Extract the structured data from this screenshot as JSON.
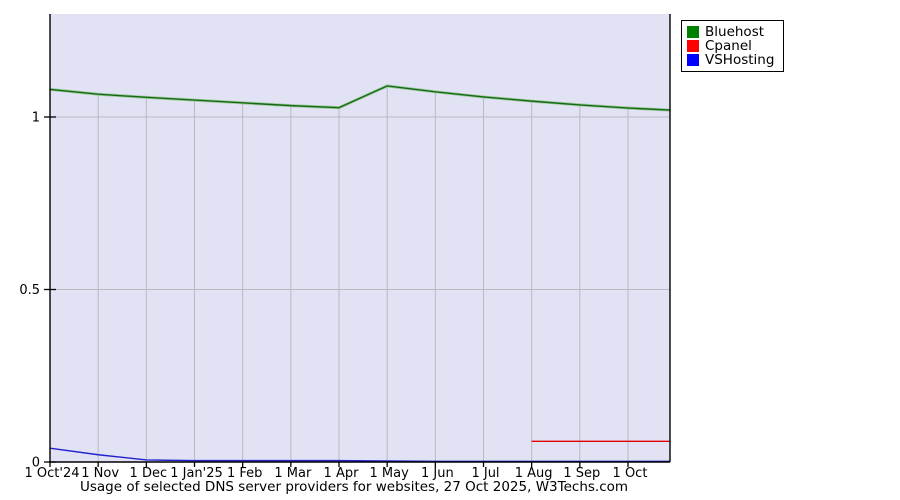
{
  "caption": "Usage of selected DNS server providers for websites, 27 Oct 2025, W3Techs.com",
  "colors": {
    "plot_bg": "#e2e2f5",
    "grid": "#b9b9c0",
    "axis": "#000000",
    "green_halo": "#9cc79c"
  },
  "chart_data": {
    "type": "line",
    "title": "Usage of selected DNS server providers for websites, 27 Oct 2025, W3Techs.com",
    "xlabel": "",
    "ylabel": "",
    "ylim": [
      0,
      1.3
    ],
    "grid": true,
    "legend_position": "outside-top-right",
    "x_tick_labels": [
      "1 Oct'24",
      "1 Nov",
      "1 Dec",
      "1 Jan'25",
      "1 Feb",
      "1 Mar",
      "1 Apr",
      "1 May",
      "1 Jun",
      "1 Jul",
      "1 Aug",
      "1 Sep",
      "1 Oct"
    ],
    "y_tick_values": [
      0,
      0.5,
      1
    ],
    "y_tick_labels": [
      "0",
      "0.5",
      "1"
    ],
    "series": [
      {
        "name": "Bluehost",
        "color": "#156b15",
        "legend_color": "#008000",
        "values": [
          1.08,
          1.066,
          1.057,
          1.049,
          1.041,
          1.033,
          1.027,
          1.09,
          1.073,
          1.058,
          1.046,
          1.035,
          1.026,
          1.02
        ]
      },
      {
        "name": "Cpanel",
        "color": "#e00000",
        "legend_color": "#ff0000",
        "values": [
          null,
          null,
          null,
          null,
          null,
          null,
          null,
          null,
          null,
          null,
          0.06,
          0.06,
          0.06,
          0.06
        ]
      },
      {
        "name": "VSHosting",
        "color": "#2222cc",
        "legend_color": "#0000ff",
        "values": [
          0.04,
          0.021,
          0.006,
          0.004,
          0.004,
          0.004,
          0.004,
          0.003,
          0.002,
          0.002,
          0.002,
          0.002,
          0.002,
          0.002
        ]
      }
    ]
  }
}
